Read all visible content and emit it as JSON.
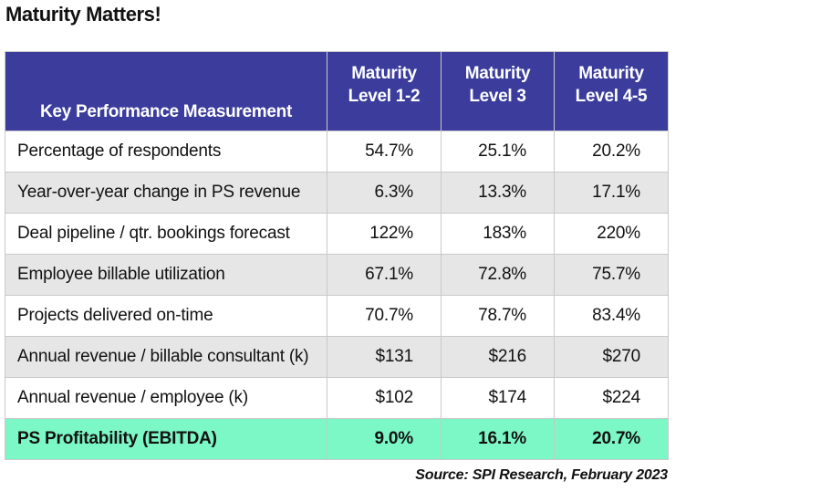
{
  "title": "Maturity Matters!",
  "table": {
    "headers": {
      "kpi": "Key Performance Measurement",
      "levels": [
        {
          "line1": "Maturity",
          "line2": "Level 1-2"
        },
        {
          "line1": "Maturity",
          "line2": "Level 3"
        },
        {
          "line1": "Maturity",
          "line2": "Level 4-5"
        }
      ]
    },
    "rows": [
      {
        "label": "Percentage of respondents",
        "values": [
          "54.7%",
          "25.1%",
          "20.2%"
        ]
      },
      {
        "label": "Year-over-year change in PS revenue",
        "values": [
          "6.3%",
          "13.3%",
          "17.1%"
        ]
      },
      {
        "label": "Deal pipeline / qtr. bookings forecast",
        "values": [
          "122%",
          "183%",
          "220%"
        ]
      },
      {
        "label": "Employee billable utilization",
        "values": [
          "67.1%",
          "72.8%",
          "75.7%"
        ]
      },
      {
        "label": "Projects delivered on-time",
        "values": [
          "70.7%",
          "78.7%",
          "83.4%"
        ]
      },
      {
        "label": "Annual revenue / billable consultant (k)",
        "values": [
          "$131",
          "$216",
          "$270"
        ]
      },
      {
        "label": "Annual revenue / employee (k)",
        "values": [
          "$102",
          "$174",
          "$224"
        ]
      },
      {
        "label": "PS Profitability (EBITDA)",
        "values": [
          "9.0%",
          "16.1%",
          "20.7%"
        ]
      }
    ]
  },
  "source": "Source: SPI Research, February 2023",
  "colors": {
    "header_bg": "#3b3c9c",
    "header_text": "#ffffff",
    "alt_row_bg": "#e6e6e6",
    "highlight_row_bg": "#7cf7c6"
  }
}
